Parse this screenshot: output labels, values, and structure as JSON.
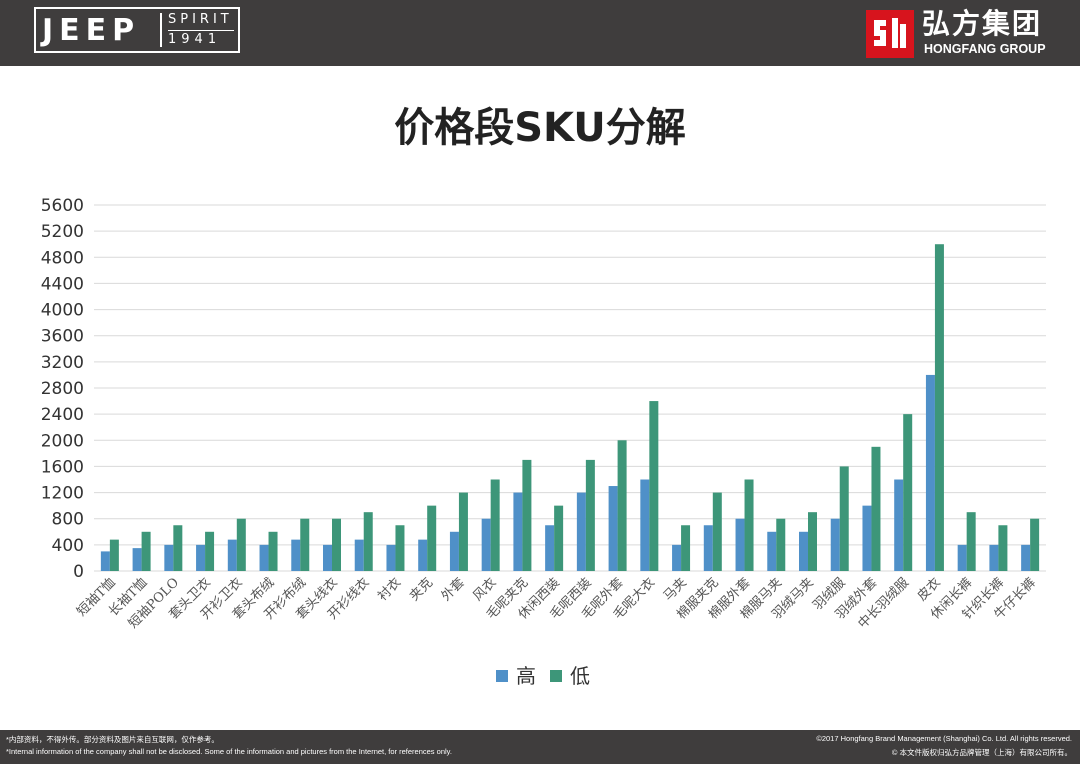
{
  "header": {
    "jeep_word": "JEEP",
    "spirit_word": "SPIRIT",
    "year_word": "1941",
    "company_cn": "弘方集团",
    "company_en": "HONGFANG GROUP",
    "icon": "hongfang-logo-icon",
    "accent_color": "#d7141d"
  },
  "footer": {
    "left_line1": "*内部资料，不得外传。部分资料及图片来自互联网，仅作参考。",
    "left_line2": "*Internal information of the company shall not be disclosed. Some of the information and pictures from the Internet, for references only.",
    "right_line1": "©2017 Hongfang Brand Management (Shanghai) Co. Ltd. All rights reserved.",
    "right_line2": "© 本文件版权归弘方品牌管理（上海）有限公司所有。"
  },
  "chart_data": {
    "type": "bar",
    "title": "价格段SKU分解",
    "xlabel": "",
    "ylabel": "",
    "ylim": [
      0,
      5600
    ],
    "yticks": [
      0,
      400,
      800,
      1200,
      1600,
      2000,
      2400,
      2800,
      3200,
      3600,
      4000,
      4400,
      4800,
      5200,
      5600
    ],
    "grid": true,
    "legend_position": "bottom",
    "categories": [
      "短袖T恤",
      "长袖T恤",
      "短袖POLO",
      "套头卫衣",
      "开衫卫衣",
      "套头布绒",
      "开衫布绒",
      "套头线衣",
      "开衫线衣",
      "衬衣",
      "夹克",
      "外套",
      "风衣",
      "毛呢夹克",
      "休闲西装",
      "毛呢西装",
      "毛呢外套",
      "毛呢大衣",
      "马夹",
      "棉服夹克",
      "棉服外套",
      "棉服马夹",
      "羽绒马夹",
      "羽绒服",
      "羽绒外套",
      "中长羽绒服",
      "皮衣",
      "休闲长裤",
      "针织长裤",
      "牛仔长裤"
    ],
    "series": [
      {
        "name": "高",
        "color": "#4f90c8",
        "values": [
          300,
          350,
          400,
          400,
          480,
          400,
          480,
          400,
          480,
          400,
          480,
          600,
          800,
          1200,
          700,
          1200,
          1300,
          1400,
          400,
          700,
          800,
          600,
          600,
          800,
          1000,
          1400,
          3000,
          400,
          400,
          400
        ]
      },
      {
        "name": "低",
        "color": "#3d9679",
        "values": [
          480,
          600,
          700,
          600,
          800,
          600,
          800,
          800,
          900,
          700,
          1000,
          1200,
          1400,
          1700,
          1000,
          1700,
          2000,
          2600,
          700,
          1200,
          1400,
          800,
          900,
          1600,
          1900,
          2400,
          5000,
          900,
          700,
          800
        ]
      }
    ]
  }
}
